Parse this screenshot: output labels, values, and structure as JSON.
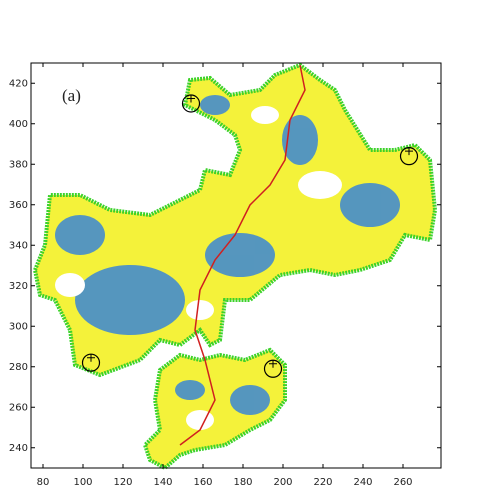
{
  "chart_data": {
    "type": "scatter",
    "annotation": "(a)",
    "xlim": [
      74,
      279
    ],
    "ylim": [
      230,
      430
    ],
    "xticks": [
      80,
      100,
      120,
      140,
      160,
      180,
      200,
      220,
      240,
      260
    ],
    "yticks": [
      240,
      260,
      280,
      300,
      320,
      340,
      360,
      380,
      400,
      420
    ],
    "x": [
      154,
      263,
      104,
      195
    ],
    "values": [
      410,
      384,
      282,
      279
    ],
    "color": "#000000"
  }
}
